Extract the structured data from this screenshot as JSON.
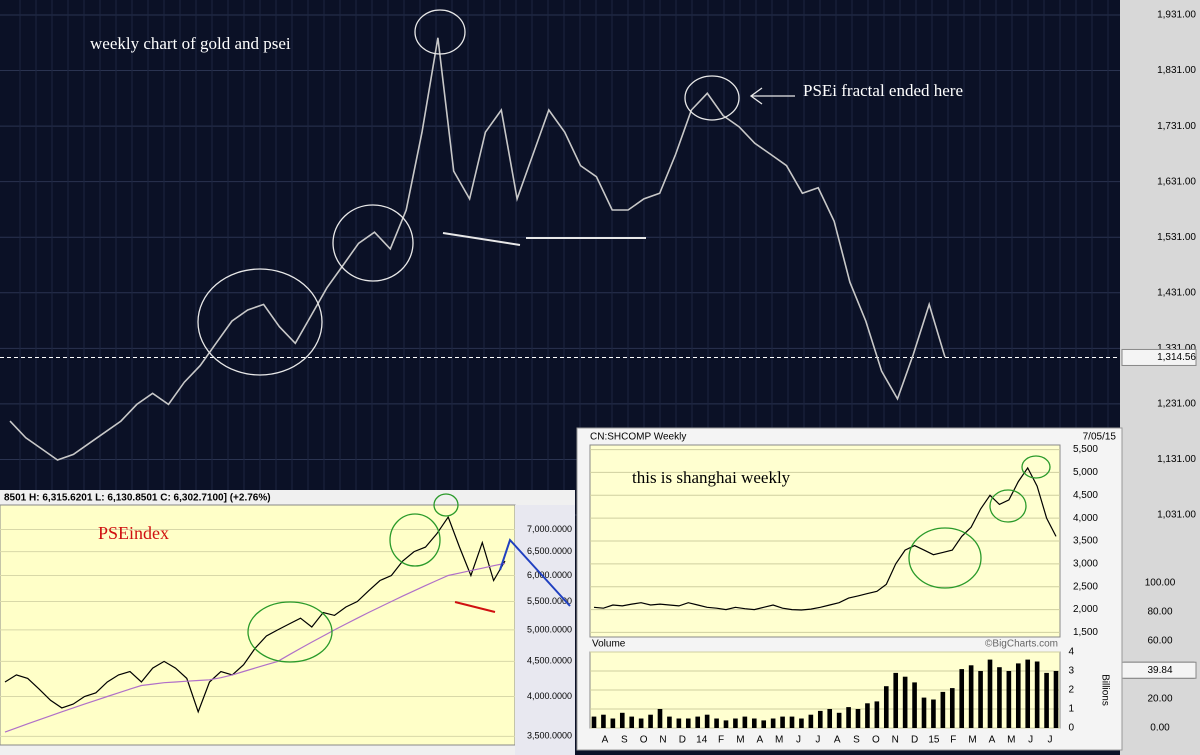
{
  "chart_data": [
    {
      "type": "line",
      "title": "weekly chart of gold and psei",
      "annotation": "PSEi fractal ended here",
      "color": "#c8c8c8",
      "values": [
        1200,
        1170,
        1150,
        1130,
        1140,
        1160,
        1180,
        1200,
        1230,
        1250,
        1230,
        1270,
        1300,
        1340,
        1380,
        1400,
        1410,
        1370,
        1340,
        1390,
        1440,
        1480,
        1520,
        1540,
        1510,
        1580,
        1720,
        1890,
        1650,
        1600,
        1720,
        1760,
        1600,
        1680,
        1760,
        1720,
        1660,
        1640,
        1580,
        1580,
        1600,
        1610,
        1680,
        1760,
        1790,
        1750,
        1730,
        1700,
        1680,
        1660,
        1610,
        1620,
        1560,
        1450,
        1380,
        1290,
        1240,
        1320,
        1410,
        1315
      ],
      "ylim": [
        950,
        1958
      ],
      "yticks": [
        {
          "value": 1031,
          "label": "1,031.00"
        },
        {
          "value": 1131,
          "label": "1,131.00"
        },
        {
          "value": 1231,
          "label": "1,231.00"
        },
        {
          "value": 1331,
          "label": "1,331.00"
        },
        {
          "value": 1431,
          "label": "1,431.00"
        },
        {
          "value": 1531,
          "label": "1,531.00"
        },
        {
          "value": 1631,
          "label": "1,631.00"
        },
        {
          "value": 1731,
          "label": "1,731.00"
        },
        {
          "value": 1831,
          "label": "1,831.00"
        },
        {
          "value": 1931,
          "label": "1,931.00"
        }
      ],
      "last": {
        "value": 1314.56,
        "label": "1,314.56"
      },
      "grid": true
    },
    {
      "type": "line",
      "title": "PSEindex",
      "header": "8501  H: 6,315.6201  L: 6,130.8501  C: 6,302.7100] (+2.76%)",
      "series": [
        {
          "color": "#000000",
          "values": [
            4200,
            4300,
            4250,
            4100,
            3950,
            3850,
            3900,
            4000,
            4050,
            4200,
            4300,
            4350,
            4200,
            4400,
            4500,
            4400,
            4250,
            3800,
            4200,
            4350,
            4300,
            4450,
            4700,
            4900,
            5000,
            5100,
            5200,
            5050,
            5300,
            5250,
            5400,
            5500,
            5700,
            5900,
            6000,
            6300,
            6500,
            6600,
            6900,
            7300,
            6600,
            6000,
            6700,
            5900,
            6300
          ]
        },
        {
          "color": "#b070c8",
          "values": [
            3550,
            3600,
            3650,
            3700,
            3750,
            3800,
            3850,
            3900,
            3950,
            4000,
            4050,
            4100,
            4150,
            4170,
            4190,
            4200,
            4210,
            4220,
            4230,
            4260,
            4300,
            4350,
            4400,
            4450,
            4500,
            4600,
            4700,
            4800,
            4900,
            5000,
            5100,
            5200,
            5300,
            5400,
            5500,
            5600,
            5700,
            5800,
            5900,
            6000,
            6050,
            6100,
            6150,
            6200,
            6250
          ]
        }
      ],
      "ylim": [
        3400,
        7600
      ],
      "log_scale": true,
      "yticks": [
        {
          "value": 3500,
          "label": "3,500.0000"
        },
        {
          "value": 4000,
          "label": "4,000.0000"
        },
        {
          "value": 4500,
          "label": "4,500.0000"
        },
        {
          "value": 5000,
          "label": "5,000.0000"
        },
        {
          "value": 5500,
          "label": "5,500.0000"
        },
        {
          "value": 6000,
          "label": "6,000.0000"
        },
        {
          "value": 6500,
          "label": "6,500.0000"
        },
        {
          "value": 7000,
          "label": "7,000.0000"
        }
      ]
    },
    {
      "type": "line",
      "header": "CN:SHCOMP Weekly",
      "date": "7/05/15",
      "annotation": "this is shanghai weekly",
      "credit": "©BigCharts.com",
      "color": "#000000",
      "values": [
        2050,
        2030,
        2100,
        2080,
        2120,
        2150,
        2100,
        2120,
        2100,
        2080,
        2150,
        2100,
        2050,
        2030,
        2000,
        2050,
        2020,
        2000,
        2050,
        2100,
        2030,
        2000,
        1990,
        2010,
        2050,
        2100,
        2150,
        2250,
        2300,
        2350,
        2400,
        2550,
        3000,
        3300,
        3400,
        3300,
        3200,
        3250,
        3300,
        3600,
        3800,
        4200,
        4500,
        4300,
        4400,
        4800,
        5100,
        4700,
        4000,
        3600
      ],
      "ylim": [
        1400,
        5600
      ],
      "yticks": [
        {
          "value": 1500,
          "label": "1,500"
        },
        {
          "value": 2000,
          "label": "2,000"
        },
        {
          "value": 2500,
          "label": "2,500"
        },
        {
          "value": 3000,
          "label": "3,000"
        },
        {
          "value": 3500,
          "label": "3,500"
        },
        {
          "value": 4000,
          "label": "4,000"
        },
        {
          "value": 4500,
          "label": "4,500"
        },
        {
          "value": 5000,
          "label": "5,000"
        },
        {
          "value": 5500,
          "label": "5,500"
        }
      ],
      "x_labels": [
        "A",
        "S",
        "O",
        "N",
        "D",
        "14",
        "F",
        "M",
        "A",
        "M",
        "J",
        "J",
        "A",
        "S",
        "O",
        "N",
        "D",
        "15",
        "F",
        "M",
        "A",
        "M",
        "J",
        "J"
      ]
    },
    {
      "type": "bar",
      "title": "Volume",
      "y_label": "Billions",
      "color": "#000000",
      "values": [
        0.6,
        0.7,
        0.5,
        0.8,
        0.6,
        0.5,
        0.7,
        1.0,
        0.6,
        0.5,
        0.5,
        0.6,
        0.7,
        0.5,
        0.4,
        0.5,
        0.6,
        0.5,
        0.4,
        0.5,
        0.6,
        0.6,
        0.5,
        0.7,
        0.9,
        1.0,
        0.8,
        1.1,
        1.0,
        1.3,
        1.4,
        2.2,
        2.9,
        2.7,
        2.4,
        1.6,
        1.5,
        1.9,
        2.1,
        3.1,
        3.3,
        3.0,
        3.6,
        3.2,
        3.0,
        3.4,
        3.6,
        3.5,
        2.9,
        3.0
      ],
      "ylim": [
        0,
        4
      ],
      "yticks": [
        0,
        1,
        2,
        3,
        4
      ]
    },
    {
      "type": "indicator",
      "ylim": [
        0,
        100
      ],
      "yticks": [
        {
          "value": 0,
          "label": "0.00"
        },
        {
          "value": 20,
          "label": "20.00"
        },
        {
          "value": 60,
          "label": "60.00"
        },
        {
          "value": 80,
          "label": "80.00"
        },
        {
          "value": 100,
          "label": "100.00"
        }
      ],
      "last": {
        "value": 39.84,
        "label": "39.84"
      }
    }
  ]
}
